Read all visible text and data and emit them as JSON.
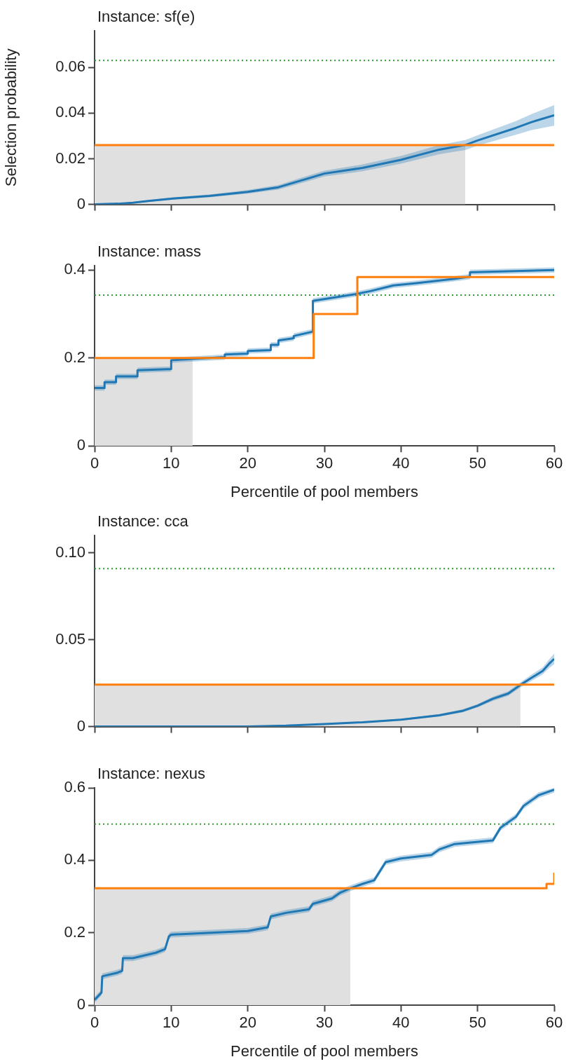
{
  "chart_data": [
    {
      "type": "line",
      "title": "Instance: sf(e)",
      "ylabel": "Selection probability",
      "xlim": [
        0,
        60
      ],
      "xticks": [
        0,
        10,
        20,
        30,
        40,
        50,
        60
      ],
      "ylim": [
        0,
        0.076
      ],
      "yticks": [
        0,
        0.02,
        0.04,
        0.06
      ],
      "tick_labels": "y",
      "series": [
        {
          "type": "area",
          "color": "#e0e0e0",
          "x": [
            0,
            48.4
          ],
          "values": [
            0.026,
            0.026
          ]
        },
        {
          "type": "line",
          "color": "#1f77b4",
          "x": [
            0,
            3,
            5,
            7,
            10,
            15,
            20,
            24,
            27,
            30,
            35,
            40,
            45,
            48.4,
            50,
            55,
            57,
            60
          ],
          "values": [
            0,
            0.0003,
            0.0007,
            0.0015,
            0.0025,
            0.0037,
            0.0055,
            0.0075,
            0.0105,
            0.0135,
            0.016,
            0.0195,
            0.024,
            0.026,
            0.028,
            0.0335,
            0.036,
            0.039
          ],
          "lower": [
            0,
            0.0001,
            0.0004,
            0.0011,
            0.002,
            0.0031,
            0.0047,
            0.0065,
            0.0093,
            0.0122,
            0.0145,
            0.0178,
            0.022,
            0.0238,
            0.0257,
            0.0305,
            0.0325,
            0.0345
          ],
          "upper": [
            0,
            0.0005,
            0.001,
            0.0019,
            0.003,
            0.0043,
            0.0063,
            0.0085,
            0.0117,
            0.0148,
            0.0175,
            0.0212,
            0.026,
            0.0282,
            0.0303,
            0.0365,
            0.0395,
            0.0435
          ]
        },
        {
          "type": "step",
          "color": "#ff7f0e",
          "x": [
            0,
            60
          ],
          "values": [
            0.026,
            0.026
          ]
        }
      ],
      "ref_lines": [
        {
          "axis": "y",
          "value": 0.063,
          "color": "#2ca02c",
          "line_style": "dotted"
        }
      ]
    },
    {
      "type": "line",
      "title": "Instance: mass",
      "xlabel": "Percentile of pool members",
      "xlim": [
        0,
        60
      ],
      "xticks": [
        0,
        10,
        20,
        30,
        40,
        50,
        60
      ],
      "ylim": [
        0,
        0.41
      ],
      "yticks": [
        0,
        0.2,
        0.4
      ],
      "series": [
        {
          "type": "area",
          "color": "#e0e0e0",
          "x": [
            0,
            12.8
          ],
          "values": [
            0.2,
            0.2
          ]
        },
        {
          "type": "line",
          "color": "#1f77b4",
          "x": [
            0,
            1.3,
            1.3,
            2.8,
            2.8,
            5.6,
            5.6,
            10,
            10,
            15,
            17,
            17,
            20,
            20,
            23,
            23,
            24,
            24,
            26,
            26,
            28.5,
            28.5,
            34,
            36,
            39,
            42,
            47,
            49,
            49,
            60
          ],
          "values": [
            0.132,
            0.132,
            0.145,
            0.145,
            0.158,
            0.158,
            0.172,
            0.175,
            0.195,
            0.2,
            0.202,
            0.208,
            0.21,
            0.216,
            0.218,
            0.23,
            0.23,
            0.24,
            0.245,
            0.25,
            0.26,
            0.33,
            0.345,
            0.352,
            0.365,
            0.37,
            0.38,
            0.385,
            0.395,
            0.4
          ],
          "lower": [
            0.126,
            0.126,
            0.139,
            0.139,
            0.152,
            0.152,
            0.166,
            0.169,
            0.189,
            0.194,
            0.196,
            0.202,
            0.204,
            0.21,
            0.212,
            0.224,
            0.224,
            0.234,
            0.239,
            0.244,
            0.254,
            0.324,
            0.339,
            0.346,
            0.359,
            0.364,
            0.374,
            0.379,
            0.389,
            0.394
          ],
          "upper": [
            0.138,
            0.138,
            0.151,
            0.151,
            0.164,
            0.164,
            0.178,
            0.181,
            0.201,
            0.206,
            0.208,
            0.214,
            0.216,
            0.222,
            0.224,
            0.236,
            0.236,
            0.246,
            0.251,
            0.256,
            0.266,
            0.336,
            0.351,
            0.358,
            0.371,
            0.376,
            0.386,
            0.391,
            0.401,
            0.406
          ]
        },
        {
          "type": "step",
          "color": "#ff7f0e",
          "x": [
            0,
            28.6,
            34.3,
            60
          ],
          "values": [
            0.2,
            0.3,
            0.384,
            0.384
          ]
        }
      ],
      "ref_lines": [
        {
          "axis": "y",
          "value": 0.343,
          "color": "#2ca02c",
          "line_style": "dotted"
        }
      ]
    },
    {
      "type": "line",
      "title": "Instance: cca",
      "xlim": [
        0,
        60
      ],
      "xticks": [
        0,
        10,
        20,
        30,
        40,
        50,
        60
      ],
      "ylim": [
        0,
        0.11
      ],
      "yticks": [
        0,
        0.05,
        {
          "value": 0.1,
          "label": "0.10"
        }
      ],
      "tick_labels": "y",
      "series": [
        {
          "type": "area",
          "color": "#e0e0e0",
          "x": [
            0,
            55.6
          ],
          "values": [
            0.0242,
            0.0242
          ]
        },
        {
          "type": "line",
          "color": "#1f77b4",
          "x": [
            0,
            20,
            25,
            30,
            35,
            40,
            45,
            48,
            50,
            52,
            54,
            55.6,
            57,
            58.5,
            59.3,
            60
          ],
          "values": [
            0,
            0,
            0.0005,
            0.0015,
            0.0025,
            0.004,
            0.0065,
            0.009,
            0.012,
            0.016,
            0.019,
            0.024,
            0.028,
            0.032,
            0.036,
            0.039
          ],
          "lower": [
            0,
            0,
            0.0003,
            0.0012,
            0.0021,
            0.0035,
            0.0058,
            0.0081,
            0.011,
            0.0148,
            0.0177,
            0.0225,
            0.0262,
            0.03,
            0.0335,
            0.036
          ],
          "upper": [
            0,
            0,
            0.0007,
            0.0018,
            0.0029,
            0.0045,
            0.0072,
            0.0099,
            0.013,
            0.0172,
            0.0203,
            0.0255,
            0.0298,
            0.034,
            0.0385,
            0.042
          ]
        },
        {
          "type": "step",
          "color": "#ff7f0e",
          "x": [
            0,
            60
          ],
          "values": [
            0.0242,
            0.0242
          ]
        }
      ],
      "ref_lines": [
        {
          "axis": "y",
          "value": 0.0909,
          "color": "#2ca02c",
          "line_style": "dotted"
        }
      ]
    },
    {
      "type": "line",
      "title": "Instance: nexus",
      "xlabel": "Percentile of pool members",
      "xlim": [
        0,
        60
      ],
      "xticks": [
        0,
        10,
        20,
        30,
        40,
        50,
        60
      ],
      "ylim": [
        0,
        0.6
      ],
      "yticks": [
        0,
        0.2,
        0.4,
        0.6
      ],
      "series": [
        {
          "type": "area",
          "color": "#e0e0e0",
          "x": [
            0,
            33.4
          ],
          "values": [
            0.323,
            0.323
          ]
        },
        {
          "type": "line",
          "color": "#1f77b4",
          "x": [
            0,
            0.9,
            1.0,
            3,
            3.6,
            3.7,
            5,
            8,
            9.2,
            9.7,
            10,
            20,
            22.6,
            23,
            25,
            28,
            28.5,
            31,
            32,
            33.4,
            35,
            36.5,
            38,
            40,
            44,
            45,
            47,
            52,
            53,
            55,
            56,
            58,
            60
          ],
          "values": [
            0.015,
            0.035,
            0.08,
            0.09,
            0.095,
            0.13,
            0.13,
            0.145,
            0.155,
            0.19,
            0.195,
            0.205,
            0.215,
            0.245,
            0.255,
            0.265,
            0.28,
            0.295,
            0.31,
            0.323,
            0.335,
            0.345,
            0.395,
            0.405,
            0.415,
            0.43,
            0.445,
            0.455,
            0.49,
            0.52,
            0.55,
            0.58,
            0.595
          ],
          "lower": [
            0.007,
            0.027,
            0.072,
            0.082,
            0.087,
            0.122,
            0.122,
            0.137,
            0.147,
            0.182,
            0.187,
            0.197,
            0.207,
            0.237,
            0.247,
            0.257,
            0.272,
            0.287,
            0.302,
            0.315,
            0.327,
            0.337,
            0.387,
            0.397,
            0.407,
            0.422,
            0.437,
            0.447,
            0.482,
            0.512,
            0.542,
            0.572,
            0.587
          ],
          "upper": [
            0.023,
            0.043,
            0.088,
            0.098,
            0.103,
            0.138,
            0.138,
            0.153,
            0.163,
            0.198,
            0.203,
            0.213,
            0.223,
            0.253,
            0.263,
            0.273,
            0.288,
            0.303,
            0.318,
            0.331,
            0.343,
            0.353,
            0.403,
            0.413,
            0.423,
            0.438,
            0.453,
            0.463,
            0.498,
            0.528,
            0.558,
            0.588,
            0.6
          ]
        },
        {
          "type": "step",
          "color": "#ff7f0e",
          "x": [
            0,
            59,
            60
          ],
          "values": [
            0.323,
            0.335,
            0.366
          ]
        }
      ],
      "ref_lines": [
        {
          "axis": "y",
          "value": 0.5,
          "color": "#2ca02c",
          "line_style": "dotted"
        }
      ]
    }
  ]
}
